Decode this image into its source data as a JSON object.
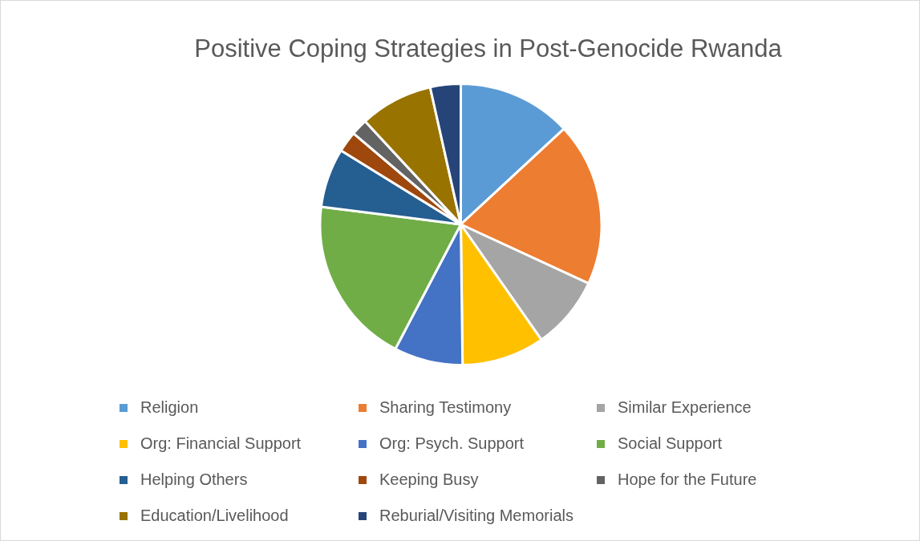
{
  "chart_data": {
    "type": "pie",
    "title": "Positive Coping Strategies in Post-Genocide Rwanda",
    "categories": [
      "Religion",
      "Sharing Testimony",
      "Similar Experience",
      "Org: Financial Support",
      "Org: Psych. Support",
      "Social Support",
      "Helping Others",
      "Keeping Busy",
      "Hope for the Future",
      "Education/Livelihood",
      "Reburial/Visiting Memorials"
    ],
    "values": [
      13.1,
      18.8,
      8.4,
      9.5,
      7.9,
      19.3,
      6.8,
      2.4,
      1.9,
      8.4,
      3.5
    ],
    "colors": [
      "#5b9bd5",
      "#ed7d31",
      "#a5a5a5",
      "#ffc000",
      "#4472c4",
      "#70ad47",
      "#255e91",
      "#9e480e",
      "#636363",
      "#997300",
      "#264478"
    ],
    "legend": "bottom"
  }
}
